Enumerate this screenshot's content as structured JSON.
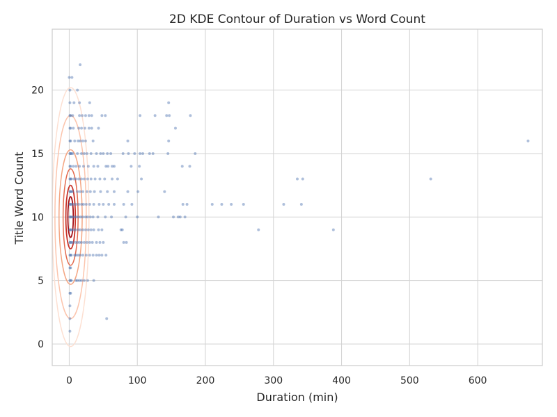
{
  "chart_data": {
    "type": "scatter",
    "title": "2D KDE Contour of Duration vs Word Count",
    "xlabel": "Duration (min)",
    "ylabel": "Title Word Count",
    "xlim": [
      -25,
      695
    ],
    "ylim": [
      -1.7,
      24.8
    ],
    "x_ticks": [
      0,
      100,
      200,
      300,
      400,
      500,
      600
    ],
    "y_ticks": [
      0,
      5,
      10,
      15,
      20
    ],
    "grid": true,
    "legend": "none",
    "colors": {
      "points": "#4c72b0",
      "contour_levels": [
        "#fde0d2",
        "#fcc5ad",
        "#f4a582",
        "#e36a4e",
        "#c8342b",
        "#a50f15"
      ],
      "grid": "#d3d3d3",
      "axes": "#cccccc"
    },
    "points": [
      [
        1,
        1
      ],
      [
        1,
        2
      ],
      [
        1,
        3
      ],
      [
        1,
        4
      ],
      [
        2,
        4
      ],
      [
        1,
        5
      ],
      [
        2,
        5
      ],
      [
        3,
        5
      ],
      [
        1,
        6
      ],
      [
        2,
        6
      ],
      [
        1,
        7
      ],
      [
        2,
        7
      ],
      [
        3,
        7
      ],
      [
        1,
        8
      ],
      [
        2,
        8
      ],
      [
        3,
        8
      ],
      [
        1,
        9
      ],
      [
        2,
        9
      ],
      [
        3,
        9
      ],
      [
        1,
        10
      ],
      [
        2,
        10
      ],
      [
        3,
        10
      ],
      [
        1,
        11
      ],
      [
        2,
        11
      ],
      [
        3,
        11
      ],
      [
        1,
        12
      ],
      [
        2,
        12
      ],
      [
        3,
        12
      ],
      [
        1,
        13
      ],
      [
        2,
        13
      ],
      [
        3,
        13
      ],
      [
        1,
        14
      ],
      [
        2,
        14
      ],
      [
        1,
        15
      ],
      [
        2,
        15
      ],
      [
        3,
        15
      ],
      [
        1,
        16
      ],
      [
        2,
        16
      ],
      [
        1,
        17
      ],
      [
        2,
        17
      ],
      [
        1,
        18
      ],
      [
        2,
        18
      ],
      [
        1,
        19
      ],
      [
        1,
        20
      ],
      [
        0,
        21
      ],
      [
        4,
        21
      ],
      [
        5,
        8
      ],
      [
        6,
        9
      ],
      [
        5,
        10
      ],
      [
        6,
        11
      ],
      [
        5,
        12
      ],
      [
        7,
        13
      ],
      [
        6,
        14
      ],
      [
        5,
        15
      ],
      [
        8,
        16
      ],
      [
        6,
        17
      ],
      [
        5,
        18
      ],
      [
        7,
        19
      ],
      [
        10,
        5
      ],
      [
        12,
        5
      ],
      [
        15,
        5
      ],
      [
        18,
        5
      ],
      [
        22,
        5
      ],
      [
        27,
        5
      ],
      [
        36,
        5
      ],
      [
        8,
        7
      ],
      [
        10,
        7
      ],
      [
        13,
        7
      ],
      [
        16,
        7
      ],
      [
        20,
        7
      ],
      [
        25,
        7
      ],
      [
        30,
        7
      ],
      [
        35,
        7
      ],
      [
        40,
        7
      ],
      [
        44,
        7
      ],
      [
        48,
        7
      ],
      [
        54,
        7
      ],
      [
        9,
        8
      ],
      [
        12,
        8
      ],
      [
        15,
        8
      ],
      [
        18,
        8
      ],
      [
        22,
        8
      ],
      [
        26,
        8
      ],
      [
        30,
        8
      ],
      [
        34,
        8
      ],
      [
        40,
        8
      ],
      [
        45,
        8
      ],
      [
        50,
        8
      ],
      [
        80,
        8
      ],
      [
        84,
        8
      ],
      [
        9,
        9
      ],
      [
        13,
        9
      ],
      [
        16,
        9
      ],
      [
        20,
        9
      ],
      [
        24,
        9
      ],
      [
        28,
        9
      ],
      [
        32,
        9
      ],
      [
        36,
        9
      ],
      [
        43,
        9
      ],
      [
        48,
        9
      ],
      [
        76,
        9
      ],
      [
        78,
        9
      ],
      [
        278,
        9
      ],
      [
        388,
        9
      ],
      [
        8,
        10
      ],
      [
        11,
        10
      ],
      [
        14,
        10
      ],
      [
        17,
        10
      ],
      [
        20,
        10
      ],
      [
        24,
        10
      ],
      [
        27,
        10
      ],
      [
        31,
        10
      ],
      [
        35,
        10
      ],
      [
        42,
        10
      ],
      [
        53,
        10
      ],
      [
        62,
        10
      ],
      [
        83,
        10
      ],
      [
        100,
        10
      ],
      [
        131,
        10
      ],
      [
        153,
        10
      ],
      [
        160,
        10
      ],
      [
        163,
        10
      ],
      [
        170,
        10
      ],
      [
        10,
        11
      ],
      [
        14,
        11
      ],
      [
        18,
        11
      ],
      [
        21,
        11
      ],
      [
        25,
        11
      ],
      [
        30,
        11
      ],
      [
        36,
        11
      ],
      [
        44,
        11
      ],
      [
        50,
        11
      ],
      [
        58,
        11
      ],
      [
        66,
        11
      ],
      [
        80,
        11
      ],
      [
        92,
        11
      ],
      [
        167,
        11
      ],
      [
        173,
        11
      ],
      [
        210,
        11
      ],
      [
        224,
        11
      ],
      [
        238,
        11
      ],
      [
        256,
        11
      ],
      [
        315,
        11
      ],
      [
        341,
        11
      ],
      [
        12,
        12
      ],
      [
        16,
        12
      ],
      [
        20,
        12
      ],
      [
        26,
        12
      ],
      [
        31,
        12
      ],
      [
        37,
        12
      ],
      [
        46,
        12
      ],
      [
        56,
        12
      ],
      [
        66,
        12
      ],
      [
        86,
        12
      ],
      [
        101,
        12
      ],
      [
        140,
        12
      ],
      [
        10,
        13
      ],
      [
        14,
        13
      ],
      [
        18,
        13
      ],
      [
        22,
        13
      ],
      [
        27,
        13
      ],
      [
        32,
        13
      ],
      [
        38,
        13
      ],
      [
        45,
        13
      ],
      [
        52,
        13
      ],
      [
        63,
        13
      ],
      [
        71,
        13
      ],
      [
        106,
        13
      ],
      [
        335,
        13
      ],
      [
        343,
        13
      ],
      [
        531,
        13
      ],
      [
        10,
        14
      ],
      [
        15,
        14
      ],
      [
        21,
        14
      ],
      [
        28,
        14
      ],
      [
        36,
        14
      ],
      [
        42,
        14
      ],
      [
        54,
        14
      ],
      [
        57,
        14
      ],
      [
        63,
        14
      ],
      [
        66,
        14
      ],
      [
        91,
        14
      ],
      [
        103,
        14
      ],
      [
        166,
        14
      ],
      [
        177,
        14
      ],
      [
        12,
        15
      ],
      [
        18,
        15
      ],
      [
        22,
        15
      ],
      [
        26,
        15
      ],
      [
        32,
        15
      ],
      [
        40,
        15
      ],
      [
        46,
        15
      ],
      [
        50,
        15
      ],
      [
        56,
        15
      ],
      [
        61,
        15
      ],
      [
        79,
        15
      ],
      [
        87,
        15
      ],
      [
        96,
        15
      ],
      [
        104,
        15
      ],
      [
        108,
        15
      ],
      [
        118,
        15
      ],
      [
        123,
        15
      ],
      [
        145,
        15
      ],
      [
        185,
        15
      ],
      [
        13,
        16
      ],
      [
        16,
        16
      ],
      [
        20,
        16
      ],
      [
        24,
        16
      ],
      [
        35,
        16
      ],
      [
        86,
        16
      ],
      [
        146,
        16
      ],
      [
        674,
        16
      ],
      [
        14,
        17
      ],
      [
        18,
        17
      ],
      [
        23,
        17
      ],
      [
        29,
        17
      ],
      [
        33,
        17
      ],
      [
        43,
        17
      ],
      [
        156,
        17
      ],
      [
        15,
        18
      ],
      [
        19,
        18
      ],
      [
        24,
        18
      ],
      [
        29,
        18
      ],
      [
        33,
        18
      ],
      [
        48,
        18
      ],
      [
        53,
        18
      ],
      [
        104,
        18
      ],
      [
        126,
        18
      ],
      [
        143,
        18
      ],
      [
        147,
        18
      ],
      [
        178,
        18
      ],
      [
        15,
        19
      ],
      [
        30,
        19
      ],
      [
        146,
        19
      ],
      [
        12,
        20
      ],
      [
        16,
        22
      ],
      [
        55,
        2
      ]
    ],
    "kde_contours": [
      {
        "center": [
          2,
          10
        ],
        "half_width": 27,
        "half_height": 10.2
      },
      {
        "center": [
          2,
          10
        ],
        "half_width": 23,
        "half_height": 8.0
      },
      {
        "center": [
          2,
          10
        ],
        "half_width": 17,
        "half_height": 5.3
      },
      {
        "center": [
          2,
          10
        ],
        "half_width": 11,
        "half_height": 3.8
      },
      {
        "center": [
          2,
          10
        ],
        "half_width": 7,
        "half_height": 2.5
      },
      {
        "center": [
          2,
          10
        ],
        "half_width": 4,
        "half_height": 1.6
      }
    ]
  }
}
